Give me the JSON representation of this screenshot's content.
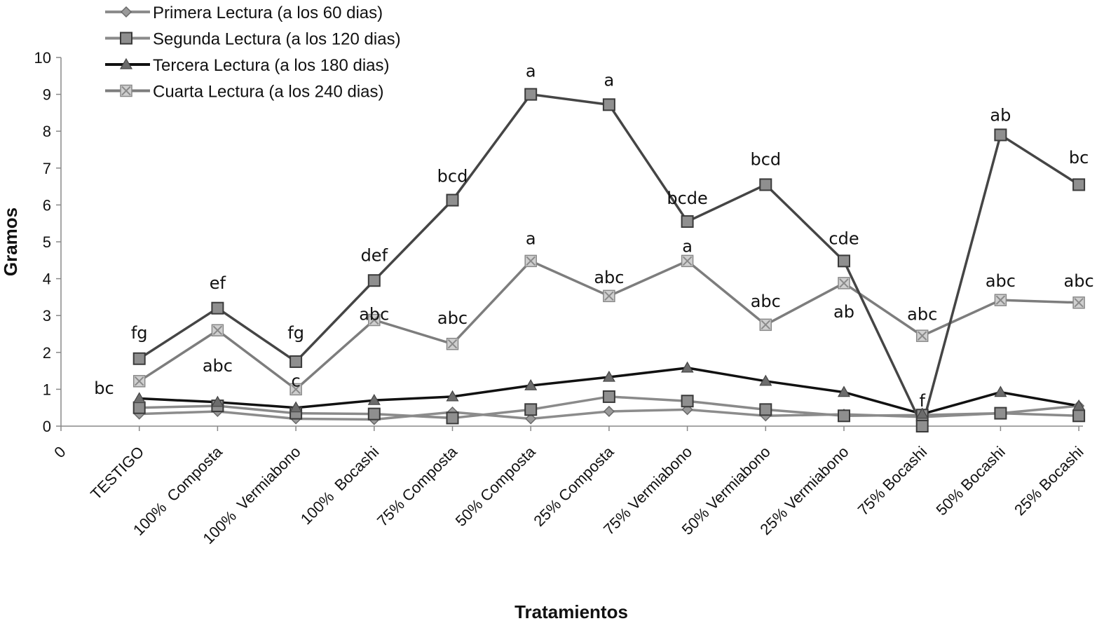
{
  "chart_data": {
    "type": "line",
    "ylabel": "Gramos",
    "xlabel": "Tratamientos",
    "ylim": [
      0,
      10
    ],
    "yticks": [
      "0",
      "1",
      "2",
      "3",
      "4",
      "5",
      "6",
      "7",
      "8",
      "9",
      "10"
    ],
    "origin_x_label": "0",
    "legend_position": "top-left",
    "categories": [
      "TESTIGO",
      "100%  Composta",
      "100%  Vermiabono",
      "100%  Bocashi",
      "75% Composta",
      "50% Composta",
      "25% Composta",
      "75% Vermiabono",
      "50% Vermiabono",
      "25% Vermiabono",
      "75% Bocashi",
      "50% Bocashi",
      "25% Bocashi"
    ],
    "series": [
      {
        "name": "Primera Lectura (a los 60 dias)",
        "marker": "diamond",
        "color": "#8c8c8c",
        "values": [
          0.33,
          0.4,
          0.2,
          0.18,
          0.38,
          0.2,
          0.4,
          0.45,
          0.28,
          0.32,
          0.25,
          0.35,
          0.55
        ]
      },
      {
        "name": "Segunda Lectura (a los 120 dias)",
        "marker": "square",
        "color": "#8a8a8a",
        "values": [
          0.5,
          0.55,
          0.35,
          0.33,
          0.22,
          0.45,
          0.8,
          0.68,
          0.45,
          0.28,
          0.3,
          0.35,
          0.28
        ]
      },
      {
        "name": "Tercera Lectura (a los 180 dias)",
        "marker": "triangle",
        "color": "#111111",
        "values": [
          0.75,
          0.65,
          0.5,
          0.7,
          0.8,
          1.1,
          1.33,
          1.58,
          1.22,
          0.92,
          0.33,
          0.92,
          0.55
        ]
      },
      {
        "name": "Cuarta Lectura (a los 240 dias)",
        "marker": "xsquare",
        "color": "#7d7d7d",
        "values": [
          1.22,
          2.6,
          1.0,
          2.88,
          2.23,
          4.48,
          3.53,
          4.48,
          2.75,
          3.88,
          2.45,
          3.42,
          3.35
        ]
      },
      {
        "name": "",
        "marker": "square",
        "color": "#454545",
        "legend": false,
        "values": [
          1.83,
          3.2,
          1.75,
          3.95,
          6.13,
          9.0,
          8.72,
          5.55,
          6.55,
          4.48,
          0.0,
          7.9,
          6.55
        ]
      }
    ],
    "annotations": [
      {
        "text": "bc",
        "x": 0.55,
        "y": 1.05
      },
      {
        "text": "fg",
        "x": 1,
        "y": 2.55
      },
      {
        "text": "ef",
        "x": 2,
        "y": 3.9
      },
      {
        "text": "abc",
        "x": 2,
        "y": 1.65
      },
      {
        "text": "fg",
        "x": 3,
        "y": 2.55
      },
      {
        "text": "c",
        "x": 3,
        "y": 1.25
      },
      {
        "text": "def",
        "x": 4,
        "y": 4.65
      },
      {
        "text": "abc",
        "x": 4,
        "y": 3.05
      },
      {
        "text": "bcd",
        "x": 5,
        "y": 6.8
      },
      {
        "text": "abc",
        "x": 5,
        "y": 2.95
      },
      {
        "text": "a",
        "x": 6,
        "y": 9.65
      },
      {
        "text": "a",
        "x": 6,
        "y": 5.1
      },
      {
        "text": "a",
        "x": 7,
        "y": 9.4
      },
      {
        "text": "abc",
        "x": 7,
        "y": 4.05
      },
      {
        "text": "bcde",
        "x": 8,
        "y": 6.2
      },
      {
        "text": "a",
        "x": 8,
        "y": 4.9
      },
      {
        "text": "bcd",
        "x": 9,
        "y": 7.25
      },
      {
        "text": "abc",
        "x": 9,
        "y": 3.4
      },
      {
        "text": "cde",
        "x": 10,
        "y": 5.1
      },
      {
        "text": "ab",
        "x": 10,
        "y": 3.12
      },
      {
        "text": "f",
        "x": 11,
        "y": 0.7
      },
      {
        "text": "abc",
        "x": 11,
        "y": 3.05
      },
      {
        "text": "ab",
        "x": 12,
        "y": 8.45
      },
      {
        "text": "abc",
        "x": 12,
        "y": 3.95
      },
      {
        "text": "bc",
        "x": 13,
        "y": 7.3
      },
      {
        "text": "abc",
        "x": 13,
        "y": 3.95
      }
    ]
  }
}
